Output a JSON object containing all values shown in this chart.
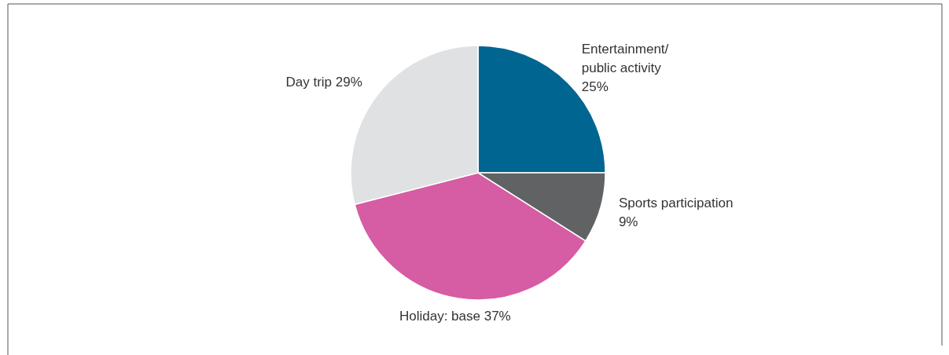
{
  "chart_data": {
    "type": "pie",
    "categories": [
      "Entertainment/ public activity",
      "Sports participation",
      "Holiday: base",
      "Day trip"
    ],
    "values": [
      25,
      9,
      37,
      29
    ],
    "value_labels": [
      "25%",
      "9%",
      "37%",
      "29%"
    ],
    "colors": [
      "#006591",
      "#616264",
      "#d65ca3",
      "#e0e1e3"
    ]
  }
}
